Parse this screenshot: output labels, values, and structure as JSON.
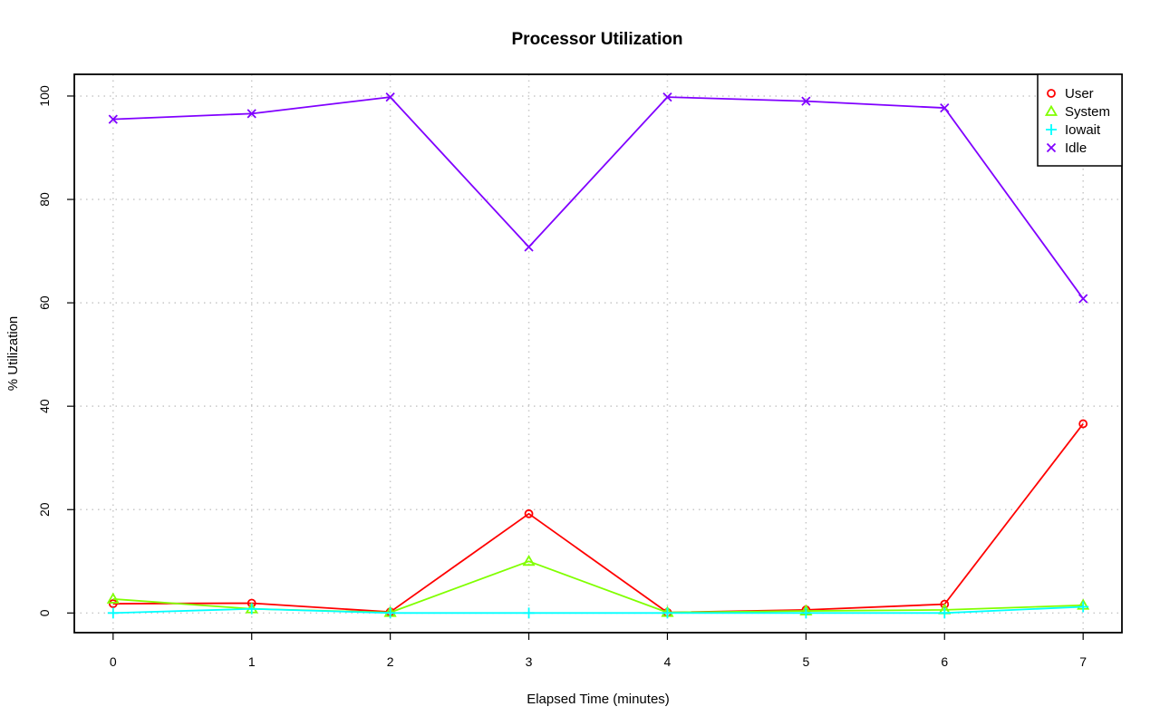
{
  "chart_data": {
    "type": "line",
    "title": "Processor Utilization",
    "xlabel": "Elapsed Time (minutes)",
    "ylabel": "% Utilization",
    "x": [
      0,
      1,
      2,
      3,
      4,
      5,
      6,
      7
    ],
    "x_ticks": [
      "0",
      "1",
      "2",
      "3",
      "4",
      "5",
      "6",
      "7"
    ],
    "y_ticks": [
      "0",
      "20",
      "40",
      "60",
      "80",
      "100"
    ],
    "xlim": [
      -0.28,
      7.28
    ],
    "ylim": [
      -3.8,
      104.2
    ],
    "grid": true,
    "legend_position": "top-right",
    "series": [
      {
        "name": "User",
        "color": "#ff0000",
        "marker": "circle",
        "values": [
          1.8,
          1.9,
          0.2,
          19.2,
          0.1,
          0.6,
          1.7,
          36.6
        ]
      },
      {
        "name": "System",
        "color": "#80ff00",
        "marker": "triangle",
        "values": [
          2.7,
          0.8,
          0.1,
          10.0,
          0.1,
          0.4,
          0.6,
          1.5
        ]
      },
      {
        "name": "Iowait",
        "color": "#00ffff",
        "marker": "plus",
        "values": [
          0.0,
          0.8,
          0.0,
          0.0,
          0.0,
          0.0,
          0.0,
          1.2
        ]
      },
      {
        "name": "Idle",
        "color": "#8000ff",
        "marker": "cross",
        "values": [
          95.5,
          96.6,
          99.8,
          70.8,
          99.8,
          99.0,
          97.7,
          60.8
        ]
      }
    ]
  }
}
